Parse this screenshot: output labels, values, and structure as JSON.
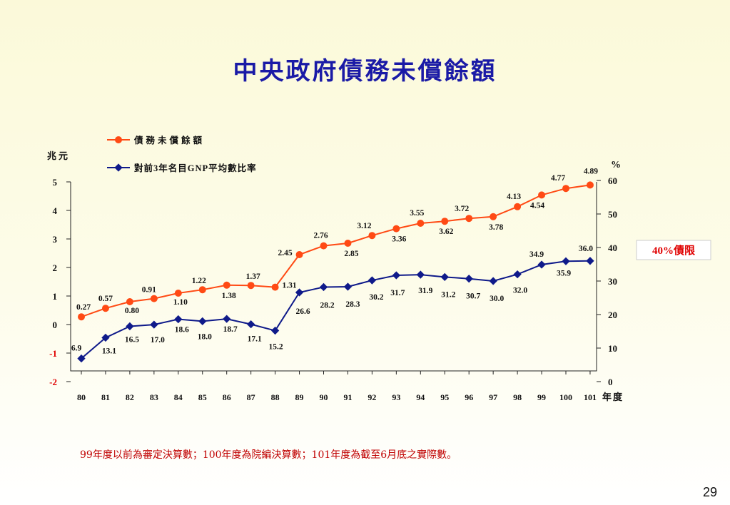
{
  "title": "中央政府債務未償餘額",
  "footnote": "99年度以前為審定決算數；100年度為院編決算數；101年度為截至6月底之實際數。",
  "page_number": "29",
  "colors": {
    "title": "#1a1aa6",
    "debt_series": "#ff4a14",
    "ratio_series": "#0f1a8a",
    "footnote": "#c00000",
    "threshold_label": "#e00000"
  },
  "chart_data": {
    "type": "line",
    "x": [
      "80",
      "81",
      "82",
      "83",
      "84",
      "85",
      "86",
      "87",
      "88",
      "89",
      "90",
      "91",
      "92",
      "93",
      "94",
      "95",
      "96",
      "97",
      "98",
      "99",
      "100",
      "101"
    ],
    "xlabel": "年度",
    "left_axis": {
      "label": "兆元",
      "ylim": [
        -2,
        5
      ],
      "ticks": [
        "5",
        "4",
        "3",
        "2",
        "1",
        "0",
        "-1",
        "-2"
      ]
    },
    "right_axis": {
      "label": "%",
      "ylim": [
        0,
        60
      ],
      "ticks": [
        "60",
        "50",
        "40",
        "30",
        "20",
        "10",
        "0"
      ]
    },
    "series": [
      {
        "name": "債務未償餘額",
        "axis": "left",
        "values": [
          0.27,
          0.57,
          0.8,
          0.91,
          1.1,
          1.22,
          1.38,
          1.37,
          1.31,
          2.45,
          2.76,
          2.85,
          3.12,
          3.36,
          3.55,
          3.62,
          3.72,
          3.78,
          4.13,
          4.54,
          4.77,
          4.89
        ],
        "labels": [
          "0.27",
          "0.57",
          "0.80",
          "0.91",
          "1.10",
          "1.22",
          "1.38",
          "1.37",
          "1.31",
          "2.45",
          "2.76",
          "2.85",
          "3.12",
          "3.36",
          "3.55",
          "3.62",
          "3.72",
          "3.78",
          "4.13",
          "4.54",
          "4.77",
          "4.89"
        ]
      },
      {
        "name": "對前3年名目GNP平均數比率",
        "axis": "right",
        "values": [
          6.9,
          13.1,
          16.5,
          17.0,
          18.6,
          18.0,
          18.7,
          17.1,
          15.2,
          26.6,
          28.2,
          28.3,
          30.2,
          31.7,
          31.9,
          31.2,
          30.7,
          30.0,
          32.0,
          34.9,
          35.9,
          36.0
        ],
        "labels": [
          "6.9",
          "13.1",
          "16.5",
          "17.0",
          "18.6",
          "18.0",
          "18.7",
          "17.1",
          "15.2",
          "26.6",
          "28.2",
          "28.3",
          "30.2",
          "31.7",
          "31.9",
          "31.2",
          "30.7",
          "30.0",
          "32.0",
          "34.9",
          "35.9",
          "36.0"
        ]
      }
    ],
    "annotation": "40%債限",
    "legend_position": "top-left",
    "grid": false
  }
}
